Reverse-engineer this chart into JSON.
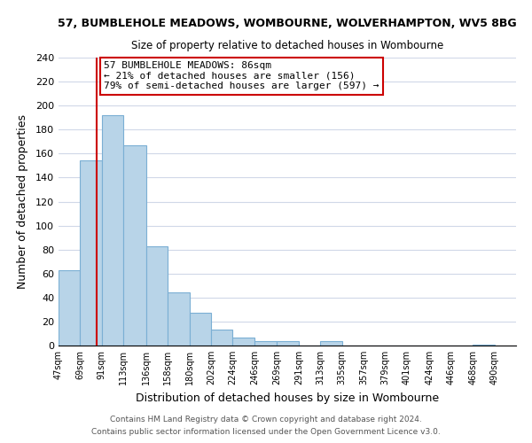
{
  "title_line1": "57, BUMBLEHOLE MEADOWS, WOMBOURNE, WOLVERHAMPTON, WV5 8BG",
  "title_line2": "Size of property relative to detached houses in Wombourne",
  "xlabel": "Distribution of detached houses by size in Wombourne",
  "ylabel": "Number of detached properties",
  "bar_left_edges": [
    47,
    69,
    91,
    113,
    136,
    158,
    180,
    202,
    224,
    246,
    269,
    291,
    313,
    335,
    357,
    379,
    401,
    424,
    446,
    468
  ],
  "bar_heights": [
    63,
    154,
    192,
    167,
    83,
    44,
    27,
    13,
    7,
    4,
    4,
    0,
    4,
    0,
    0,
    0,
    0,
    0,
    0,
    1
  ],
  "bar_widths": [
    22,
    22,
    22,
    23,
    22,
    22,
    22,
    22,
    22,
    23,
    22,
    22,
    22,
    22,
    22,
    22,
    23,
    22,
    22,
    22
  ],
  "tick_labels": [
    "47sqm",
    "69sqm",
    "91sqm",
    "113sqm",
    "136sqm",
    "158sqm",
    "180sqm",
    "202sqm",
    "224sqm",
    "246sqm",
    "269sqm",
    "291sqm",
    "313sqm",
    "335sqm",
    "357sqm",
    "379sqm",
    "401sqm",
    "424sqm",
    "446sqm",
    "468sqm",
    "490sqm"
  ],
  "bar_color": "#b8d4e8",
  "bar_edge_color": "#7bafd4",
  "property_line_x": 86,
  "vline_color": "#cc0000",
  "ylim": [
    0,
    240
  ],
  "yticks": [
    0,
    20,
    40,
    60,
    80,
    100,
    120,
    140,
    160,
    180,
    200,
    220,
    240
  ],
  "annotation_title": "57 BUMBLEHOLE MEADOWS: 86sqm",
  "annotation_line2": "← 21% of detached houses are smaller (156)",
  "annotation_line3": "79% of semi-detached houses are larger (597) →",
  "footer_line1": "Contains HM Land Registry data © Crown copyright and database right 2024.",
  "footer_line2": "Contains public sector information licensed under the Open Government Licence v3.0.",
  "background_color": "#ffffff",
  "grid_color": "#d0d8e8"
}
